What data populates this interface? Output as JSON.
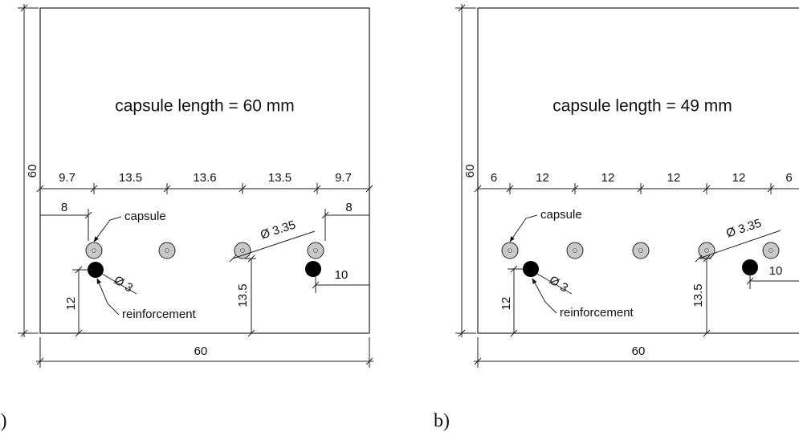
{
  "panels": [
    {
      "label": "a)",
      "title": "capsule length = 60 mm",
      "height_dim": 60,
      "width_dim": 60,
      "spacings": [
        9.7,
        13.5,
        13.6,
        13.5,
        9.7
      ],
      "left_offset": 8,
      "right_offset": 8,
      "capsule_label": "capsule",
      "reinforcement_label": "reinforcement",
      "capsule_diameter": "Ø 3.35",
      "bar_diameter": "Ø 3",
      "bar_height": 12,
      "capsule_height": 13.5,
      "right_bar_offset": 10
    },
    {
      "label": "b)",
      "title": "capsule length = 49 mm",
      "height_dim": 60,
      "width_dim": 60,
      "spacings": [
        6,
        12,
        12,
        12,
        12,
        6
      ],
      "capsule_label": "capsule",
      "reinforcement_label": "reinforcement",
      "capsule_diameter": "Ø 3.35",
      "bar_diameter": "Ø 3",
      "bar_height": 12,
      "capsule_height": 13.5,
      "right_bar_offset": 10
    }
  ]
}
